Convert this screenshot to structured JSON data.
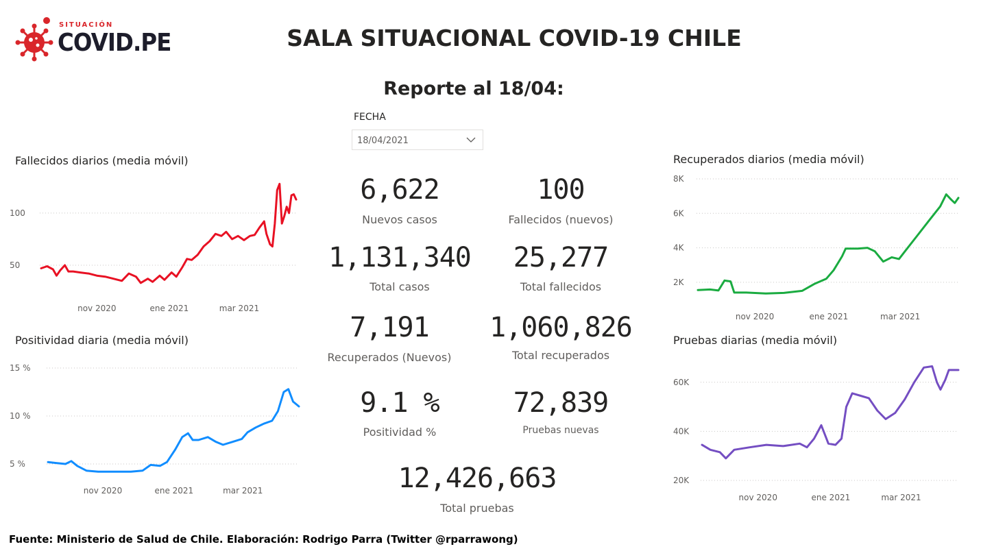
{
  "logo": {
    "small_text": "SITUACIÓN",
    "big_text": "COVID.PE"
  },
  "header": {
    "title": "SALA SITUACIONAL COVID-19 CHILE",
    "report": "Reporte al 18/04:"
  },
  "filter": {
    "label": "FECHA",
    "value": "18/04/2021"
  },
  "kpis": {
    "nuevos_casos": {
      "value": "6,622",
      "label": "Nuevos casos"
    },
    "fallecidos_nuevos": {
      "value": "100",
      "label": "Fallecidos (nuevos)"
    },
    "total_casos": {
      "value": "1,131,340",
      "label": "Total casos"
    },
    "total_fallecidos": {
      "value": "25,277",
      "label": "Total fallecidos"
    },
    "recuperados_nuevos": {
      "value": "7,191",
      "label": "Recuperados (Nuevos)"
    },
    "total_recuperados": {
      "value": "1,060,826",
      "label": "Total recuperados"
    },
    "positividad": {
      "value": "9.1 %",
      "label": "Positividad %"
    },
    "pruebas_nuevas": {
      "value": "72,839",
      "label": "Pruebas nuevas"
    },
    "total_pruebas": {
      "value": "12,426,663",
      "label": "Total pruebas"
    }
  },
  "footer": "Fuente: Ministerio de Salud de Chile. Elaboración: Rodrigo Parra (Twitter @rparrawong)",
  "chart_data": [
    {
      "id": "fallecidos",
      "type": "line",
      "title": "Fallecidos diarios (media móvil)",
      "color": "#e81123",
      "x_range": [
        "2020-09-15",
        "2021-04-18"
      ],
      "x_ticks": [
        {
          "date": "2020-11-01",
          "label": "nov 2020"
        },
        {
          "date": "2021-01-01",
          "label": "ene 2021"
        },
        {
          "date": "2021-03-01",
          "label": "mar 2021"
        }
      ],
      "ylim": [
        25,
        140
      ],
      "y_ticks": [
        {
          "value": 50,
          "label": "50"
        },
        {
          "value": 100,
          "label": "100"
        }
      ],
      "points": [
        [
          "2020-09-15",
          47
        ],
        [
          "2020-09-20",
          49
        ],
        [
          "2020-09-25",
          46
        ],
        [
          "2020-09-28",
          40
        ],
        [
          "2020-10-01",
          45
        ],
        [
          "2020-10-05",
          50
        ],
        [
          "2020-10-08",
          44
        ],
        [
          "2020-10-12",
          44
        ],
        [
          "2020-10-18",
          43
        ],
        [
          "2020-10-25",
          42
        ],
        [
          "2020-11-01",
          40
        ],
        [
          "2020-11-08",
          39
        ],
        [
          "2020-11-15",
          37
        ],
        [
          "2020-11-22",
          35
        ],
        [
          "2020-11-28",
          42
        ],
        [
          "2020-12-04",
          39
        ],
        [
          "2020-12-08",
          33
        ],
        [
          "2020-12-14",
          37
        ],
        [
          "2020-12-18",
          34
        ],
        [
          "2020-12-24",
          40
        ],
        [
          "2020-12-28",
          36
        ],
        [
          "2021-01-03",
          43
        ],
        [
          "2021-01-07",
          39
        ],
        [
          "2021-01-12",
          48
        ],
        [
          "2021-01-16",
          56
        ],
        [
          "2021-01-20",
          55
        ],
        [
          "2021-01-25",
          60
        ],
        [
          "2021-01-30",
          68
        ],
        [
          "2021-02-04",
          73
        ],
        [
          "2021-02-09",
          80
        ],
        [
          "2021-02-14",
          78
        ],
        [
          "2021-02-18",
          82
        ],
        [
          "2021-02-23",
          75
        ],
        [
          "2021-02-28",
          78
        ],
        [
          "2021-03-05",
          74
        ],
        [
          "2021-03-10",
          78
        ],
        [
          "2021-03-14",
          79
        ],
        [
          "2021-03-18",
          86
        ],
        [
          "2021-03-22",
          92
        ],
        [
          "2021-03-24",
          80
        ],
        [
          "2021-03-27",
          70
        ],
        [
          "2021-03-29",
          68
        ],
        [
          "2021-03-31",
          90
        ],
        [
          "2021-04-02",
          122
        ],
        [
          "2021-04-04",
          128
        ],
        [
          "2021-04-06",
          90
        ],
        [
          "2021-04-08",
          97
        ],
        [
          "2021-04-10",
          106
        ],
        [
          "2021-04-12",
          100
        ],
        [
          "2021-04-14",
          117
        ],
        [
          "2021-04-16",
          118
        ],
        [
          "2021-04-18",
          113
        ]
      ]
    },
    {
      "id": "positividad",
      "type": "line",
      "title": "Positividad diaria (media móvil)",
      "color": "#118dff",
      "x_range": [
        "2020-09-15",
        "2021-04-18"
      ],
      "x_ticks": [
        {
          "date": "2020-11-01",
          "label": "nov 2020"
        },
        {
          "date": "2021-01-01",
          "label": "ene 2021"
        },
        {
          "date": "2021-03-01",
          "label": "mar 2021"
        }
      ],
      "ylim": [
        4,
        15
      ],
      "y_ticks": [
        {
          "value": 5,
          "label": "5 %"
        },
        {
          "value": 10,
          "label": "10 %"
        },
        {
          "value": 15,
          "label": "15 %"
        }
      ],
      "points": [
        [
          "2020-09-15",
          5.2
        ],
        [
          "2020-09-22",
          5.1
        ],
        [
          "2020-09-30",
          5.0
        ],
        [
          "2020-10-05",
          5.3
        ],
        [
          "2020-10-10",
          4.8
        ],
        [
          "2020-10-18",
          4.3
        ],
        [
          "2020-10-28",
          4.2
        ],
        [
          "2020-11-10",
          4.2
        ],
        [
          "2020-11-25",
          4.2
        ],
        [
          "2020-12-05",
          4.3
        ],
        [
          "2020-12-12",
          4.9
        ],
        [
          "2020-12-20",
          4.8
        ],
        [
          "2020-12-26",
          5.2
        ],
        [
          "2021-01-02",
          6.5
        ],
        [
          "2021-01-08",
          7.8
        ],
        [
          "2021-01-13",
          8.2
        ],
        [
          "2021-01-17",
          7.5
        ],
        [
          "2021-01-22",
          7.5
        ],
        [
          "2021-01-30",
          7.8
        ],
        [
          "2021-02-06",
          7.3
        ],
        [
          "2021-02-12",
          7.0
        ],
        [
          "2021-02-20",
          7.3
        ],
        [
          "2021-02-28",
          7.6
        ],
        [
          "2021-03-05",
          8.3
        ],
        [
          "2021-03-12",
          8.8
        ],
        [
          "2021-03-19",
          9.2
        ],
        [
          "2021-03-26",
          9.5
        ],
        [
          "2021-03-31",
          10.5
        ],
        [
          "2021-04-05",
          12.5
        ],
        [
          "2021-04-09",
          12.8
        ],
        [
          "2021-04-13",
          11.5
        ],
        [
          "2021-04-18",
          11.0
        ]
      ]
    },
    {
      "id": "recuperados",
      "type": "line",
      "title": "Recuperados diarios (media móvil)",
      "color": "#1aab40",
      "x_range": [
        "2020-09-15",
        "2021-04-18"
      ],
      "x_ticks": [
        {
          "date": "2020-11-01",
          "label": "nov 2020"
        },
        {
          "date": "2021-01-01",
          "label": "ene 2021"
        },
        {
          "date": "2021-03-01",
          "label": "mar 2021"
        }
      ],
      "ylim": [
        1000,
        8000
      ],
      "y_ticks": [
        {
          "value": 2000,
          "label": "2K"
        },
        {
          "value": 4000,
          "label": "4K"
        },
        {
          "value": 6000,
          "label": "6K"
        },
        {
          "value": 8000,
          "label": "8K"
        }
      ],
      "points": [
        [
          "2020-09-15",
          1550
        ],
        [
          "2020-09-25",
          1580
        ],
        [
          "2020-10-02",
          1520
        ],
        [
          "2020-10-07",
          2100
        ],
        [
          "2020-10-12",
          2050
        ],
        [
          "2020-10-15",
          1400
        ],
        [
          "2020-10-25",
          1400
        ],
        [
          "2020-11-10",
          1350
        ],
        [
          "2020-11-25",
          1380
        ],
        [
          "2020-12-10",
          1500
        ],
        [
          "2020-12-20",
          1900
        ],
        [
          "2020-12-30",
          2200
        ],
        [
          "2021-01-05",
          2700
        ],
        [
          "2021-01-12",
          3500
        ],
        [
          "2021-01-15",
          3950
        ],
        [
          "2021-01-25",
          3950
        ],
        [
          "2021-02-02",
          4000
        ],
        [
          "2021-02-08",
          3800
        ],
        [
          "2021-02-15",
          3200
        ],
        [
          "2021-02-22",
          3450
        ],
        [
          "2021-02-28",
          3350
        ],
        [
          "2021-03-05",
          3800
        ],
        [
          "2021-03-15",
          4700
        ],
        [
          "2021-03-25",
          5600
        ],
        [
          "2021-04-03",
          6400
        ],
        [
          "2021-04-08",
          7100
        ],
        [
          "2021-04-12",
          6800
        ],
        [
          "2021-04-15",
          6600
        ],
        [
          "2021-04-18",
          6900
        ]
      ]
    },
    {
      "id": "pruebas",
      "type": "line",
      "title": "Pruebas diarias (media móvil)",
      "color": "#744ec2",
      "x_range": [
        "2020-09-15",
        "2021-04-18"
      ],
      "x_ticks": [
        {
          "date": "2020-11-01",
          "label": "nov 2020"
        },
        {
          "date": "2021-01-01",
          "label": "ene 2021"
        },
        {
          "date": "2021-03-01",
          "label": "mar 2021"
        }
      ],
      "ylim": [
        20000,
        70000
      ],
      "y_ticks": [
        {
          "value": 20000,
          "label": "20K"
        },
        {
          "value": 40000,
          "label": "40K"
        },
        {
          "value": 60000,
          "label": "60K"
        }
      ],
      "points": [
        [
          "2020-09-15",
          34500
        ],
        [
          "2020-09-22",
          32500
        ],
        [
          "2020-09-30",
          31500
        ],
        [
          "2020-10-05",
          29000
        ],
        [
          "2020-10-12",
          32500
        ],
        [
          "2020-10-25",
          33500
        ],
        [
          "2020-11-08",
          34500
        ],
        [
          "2020-11-22",
          34000
        ],
        [
          "2020-12-06",
          35000
        ],
        [
          "2020-12-12",
          33500
        ],
        [
          "2020-12-18",
          37000
        ],
        [
          "2020-12-24",
          42500
        ],
        [
          "2020-12-30",
          35000
        ],
        [
          "2021-01-05",
          34500
        ],
        [
          "2021-01-10",
          37000
        ],
        [
          "2021-01-14",
          50000
        ],
        [
          "2021-01-19",
          55500
        ],
        [
          "2021-01-26",
          54500
        ],
        [
          "2021-02-02",
          53500
        ],
        [
          "2021-02-09",
          48500
        ],
        [
          "2021-02-16",
          45000
        ],
        [
          "2021-02-24",
          47500
        ],
        [
          "2021-03-04",
          53000
        ],
        [
          "2021-03-12",
          60000
        ],
        [
          "2021-03-20",
          66000
        ],
        [
          "2021-03-27",
          66500
        ],
        [
          "2021-03-31",
          60000
        ],
        [
          "2021-04-03",
          57000
        ],
        [
          "2021-04-07",
          61000
        ],
        [
          "2021-04-10",
          65000
        ],
        [
          "2021-04-18",
          65000
        ]
      ]
    }
  ]
}
